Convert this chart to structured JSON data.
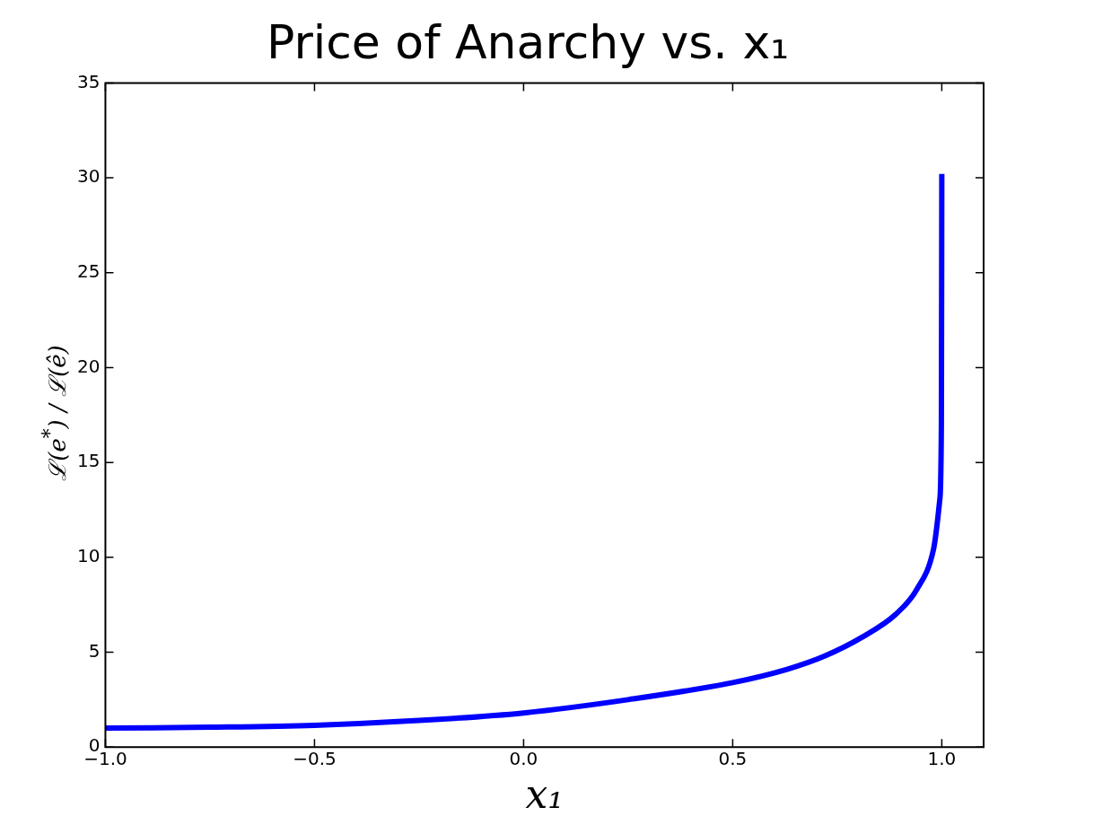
{
  "chart_data": {
    "type": "line",
    "title": "Price of Anarchy vs. x₁",
    "xlabel": "x₁",
    "ylabel": "ℒ(e$^{*}$) / ℒ(ê)",
    "x": [
      -1.0,
      -0.75,
      -0.5,
      -0.25,
      0.0,
      0.25,
      0.5,
      0.63,
      0.72,
      0.81,
      0.89,
      0.94,
      0.98,
      0.995,
      0.999,
      1.0
    ],
    "series": [
      {
        "color": "#0000ff",
        "values": [
          1.0,
          1.05,
          1.15,
          1.4,
          1.8,
          2.5,
          3.4,
          4.1,
          4.8,
          5.8,
          7.0,
          8.3,
          10.4,
          13.0,
          17.0,
          30.2
        ]
      }
    ],
    "xlim": [
      -1.0,
      1.1
    ],
    "xticks": [
      {
        "value": -1.0,
        "label": "−1.0"
      },
      {
        "value": -0.5,
        "label": "−0.5"
      },
      {
        "value": 0,
        "label": "0.0"
      },
      {
        "value": 0.5,
        "label": "0.5"
      },
      {
        "value": 1.0,
        "label": "1.0"
      }
    ],
    "ylim": [
      0,
      35
    ],
    "yticks": [
      0,
      5,
      10,
      15,
      20,
      25,
      30,
      35
    ],
    "marker": "none",
    "line_style": "solid",
    "legend": false,
    "grid": false
  }
}
